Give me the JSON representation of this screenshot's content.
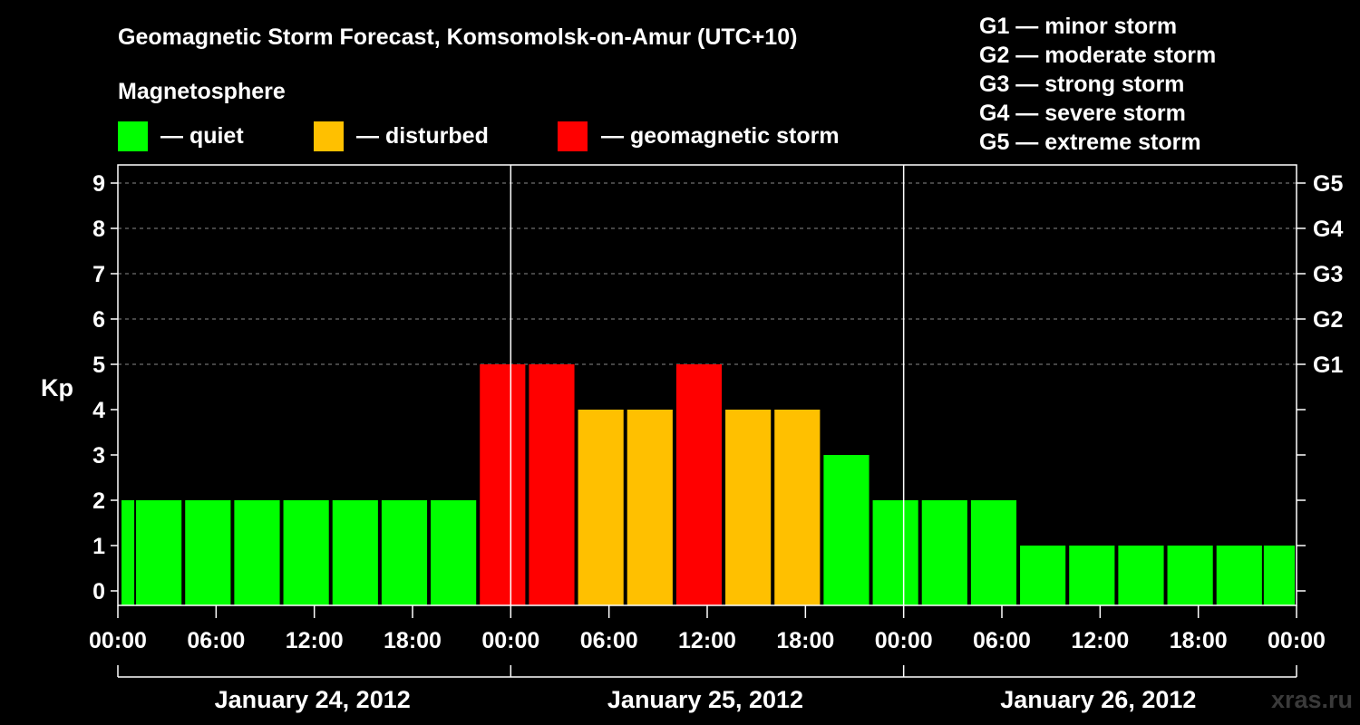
{
  "chart_data": {
    "type": "bar",
    "title": "Geomagnetic Storm Forecast, Komsomolsk-on-Amur (UTC+10)",
    "legend_title": "Magnetosphere",
    "legend": [
      {
        "label": "— quiet",
        "color": "#00ff00"
      },
      {
        "label": "— disturbed",
        "color": "#ffc000"
      },
      {
        "label": "— geomagnetic storm",
        "color": "#ff0000"
      }
    ],
    "storm_scale": [
      "G1 — minor storm",
      "G2 — moderate storm",
      "G3 — strong storm",
      "G4 — severe storm",
      "G5 — extreme storm"
    ],
    "ylabel": "Kp",
    "ylim": [
      0,
      9
    ],
    "yticks": [
      "0",
      "1",
      "2",
      "3",
      "4",
      "5",
      "6",
      "7",
      "8",
      "9"
    ],
    "right_axis_labels": [
      {
        "kp": 5,
        "label": "G1"
      },
      {
        "kp": 6,
        "label": "G2"
      },
      {
        "kp": 7,
        "label": "G3"
      },
      {
        "kp": 8,
        "label": "G4"
      },
      {
        "kp": 9,
        "label": "G5"
      }
    ],
    "x_hours_range": [
      0,
      72
    ],
    "xticks": [
      {
        "hour": 0,
        "label": "00:00"
      },
      {
        "hour": 6,
        "label": "06:00"
      },
      {
        "hour": 12,
        "label": "12:00"
      },
      {
        "hour": 18,
        "label": "18:00"
      },
      {
        "hour": 24,
        "label": "00:00"
      },
      {
        "hour": 30,
        "label": "06:00"
      },
      {
        "hour": 36,
        "label": "12:00"
      },
      {
        "hour": 42,
        "label": "18:00"
      },
      {
        "hour": 48,
        "label": "00:00"
      },
      {
        "hour": 54,
        "label": "06:00"
      },
      {
        "hour": 60,
        "label": "12:00"
      },
      {
        "hour": 66,
        "label": "18:00"
      },
      {
        "hour": 72,
        "label": "00:00"
      }
    ],
    "days": [
      {
        "label": "January 24, 2012",
        "start_hour": 0,
        "end_hour": 24
      },
      {
        "label": "January 25, 2012",
        "start_hour": 24,
        "end_hour": 48
      },
      {
        "label": "January 26, 2012",
        "start_hour": 48,
        "end_hour": 72
      }
    ],
    "day_separators_hours": [
      24,
      48
    ],
    "bars": [
      {
        "start_hour": 0,
        "end_hour": 1,
        "kp": 2,
        "level": "quiet"
      },
      {
        "start_hour": 1,
        "end_hour": 4,
        "kp": 2,
        "level": "quiet"
      },
      {
        "start_hour": 4,
        "end_hour": 7,
        "kp": 2,
        "level": "quiet"
      },
      {
        "start_hour": 7,
        "end_hour": 10,
        "kp": 2,
        "level": "quiet"
      },
      {
        "start_hour": 10,
        "end_hour": 13,
        "kp": 2,
        "level": "quiet"
      },
      {
        "start_hour": 13,
        "end_hour": 16,
        "kp": 2,
        "level": "quiet"
      },
      {
        "start_hour": 16,
        "end_hour": 19,
        "kp": 2,
        "level": "quiet"
      },
      {
        "start_hour": 19,
        "end_hour": 22,
        "kp": 2,
        "level": "quiet"
      },
      {
        "start_hour": 22,
        "end_hour": 25,
        "kp": 5,
        "level": "storm"
      },
      {
        "start_hour": 25,
        "end_hour": 28,
        "kp": 5,
        "level": "storm"
      },
      {
        "start_hour": 28,
        "end_hour": 31,
        "kp": 4,
        "level": "disturbed"
      },
      {
        "start_hour": 31,
        "end_hour": 34,
        "kp": 4,
        "level": "disturbed"
      },
      {
        "start_hour": 34,
        "end_hour": 37,
        "kp": 5,
        "level": "storm"
      },
      {
        "start_hour": 37,
        "end_hour": 40,
        "kp": 4,
        "level": "disturbed"
      },
      {
        "start_hour": 40,
        "end_hour": 43,
        "kp": 4,
        "level": "disturbed"
      },
      {
        "start_hour": 43,
        "end_hour": 46,
        "kp": 3,
        "level": "quiet"
      },
      {
        "start_hour": 46,
        "end_hour": 49,
        "kp": 2,
        "level": "quiet"
      },
      {
        "start_hour": 49,
        "end_hour": 52,
        "kp": 2,
        "level": "quiet"
      },
      {
        "start_hour": 52,
        "end_hour": 55,
        "kp": 2,
        "level": "quiet"
      },
      {
        "start_hour": 55,
        "end_hour": 58,
        "kp": 1,
        "level": "quiet"
      },
      {
        "start_hour": 58,
        "end_hour": 61,
        "kp": 1,
        "level": "quiet"
      },
      {
        "start_hour": 61,
        "end_hour": 64,
        "kp": 1,
        "level": "quiet"
      },
      {
        "start_hour": 64,
        "end_hour": 67,
        "kp": 1,
        "level": "quiet"
      },
      {
        "start_hour": 67,
        "end_hour": 70,
        "kp": 1,
        "level": "quiet"
      },
      {
        "start_hour": 70,
        "end_hour": 72,
        "kp": 1,
        "level": "quiet"
      }
    ],
    "colors": {
      "quiet": "#00ff00",
      "disturbed": "#ffc000",
      "storm": "#ff0000"
    }
  },
  "watermark": "xras.ru"
}
